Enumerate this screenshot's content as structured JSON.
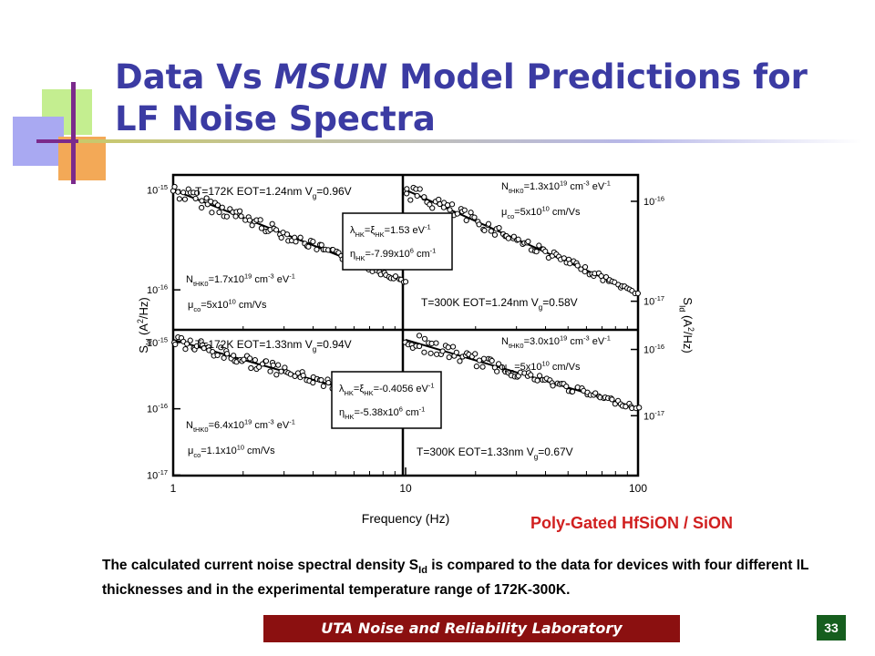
{
  "slide": {
    "title_pre": "Data Vs ",
    "title_em": "MSUN",
    "title_post": " Model Predictions for LF Noise Spectra",
    "subtitle_red": "Poly-Gated HfSiON / SiON",
    "caption_pre": "The calculated current noise spectral density S",
    "caption_sub": "Id",
    "caption_post": " is compared to the data for devices with four different IL thicknesses and in the experimental temperature range of 172K-300K.",
    "footer": "UTA Noise and Reliability Laboratory",
    "page_number": "33"
  },
  "colors": {
    "title": "#3b3ba3",
    "subtitle_red": "#d12020",
    "footer_bg": "#8b1010",
    "page_bg": "#165e1e"
  },
  "chart_data": {
    "type": "scatter",
    "xlabel": "Frequency (Hz)",
    "ylabel_left": "S_Id (A^2/Hz)",
    "ylabel_right": "S_Id (A^2/Hz)",
    "x_scale": "log",
    "x_ticks": [
      "1",
      "10",
      "100"
    ],
    "grid": false,
    "panels": [
      {
        "position": "top-left",
        "label": "T=172K EOT=1.24nm V_g=0.96V",
        "params": [
          "N_tHK0=1.7x10^19 cm^-3 eV^-1",
          "μ_co=5x10^10 cm/Vs"
        ],
        "y_ticks": [
          "10^-15",
          "10^-16"
        ],
        "line": {
          "x": [
            1,
            10
          ],
          "y": [
            1e-15,
            1.2e-16
          ]
        }
      },
      {
        "position": "top-right",
        "label": "T=300K EOT=1.24nm V_g=0.58V",
        "params": [
          "N_tHK0=1.3x10^19 cm^-3 eV^-1",
          "μ_co=5x10^10 cm/Vs"
        ],
        "y_ticks": [
          "10^-16",
          "10^-17"
        ],
        "line": {
          "x": [
            10,
            100
          ],
          "y": [
            1.3e-16,
            1.2e-17
          ]
        }
      },
      {
        "position": "bottom-left",
        "label": "T=172K EOT=1.33nm V_g=0.94V",
        "params": [
          "N_tHK0=6.4x10^19 cm^-3 eV^-1",
          "μ_co=1.1x10^10 cm/Vs"
        ],
        "y_ticks": [
          "10^-15",
          "10^-16",
          "10^-17"
        ],
        "line": {
          "x": [
            1,
            10
          ],
          "y": [
            1.1e-15,
            1.1e-16
          ]
        }
      },
      {
        "position": "bottom-right",
        "label": "T=300K EOT=1.33nm V_g=0.67V",
        "params": [
          "N_tHK0=3.0x10^19 cm^-3 eV^-1",
          "μ_co=5x10^10 cm/Vs"
        ],
        "y_ticks": [
          "10^-16",
          "10^-17"
        ],
        "line": {
          "x": [
            10,
            100
          ],
          "y": [
            1.4e-16,
            1.3e-17
          ]
        }
      }
    ],
    "boxes": [
      {
        "lines": [
          "λ_HK=ξ_HK=1.53 eV^-1",
          "η_HK=-7.99x10^6 cm^-1"
        ]
      },
      {
        "lines": [
          "λ_HK=ξ_HK=-0.4056 eV^-1",
          "η_HK=-5.38x10^6 cm^-1"
        ]
      }
    ]
  }
}
